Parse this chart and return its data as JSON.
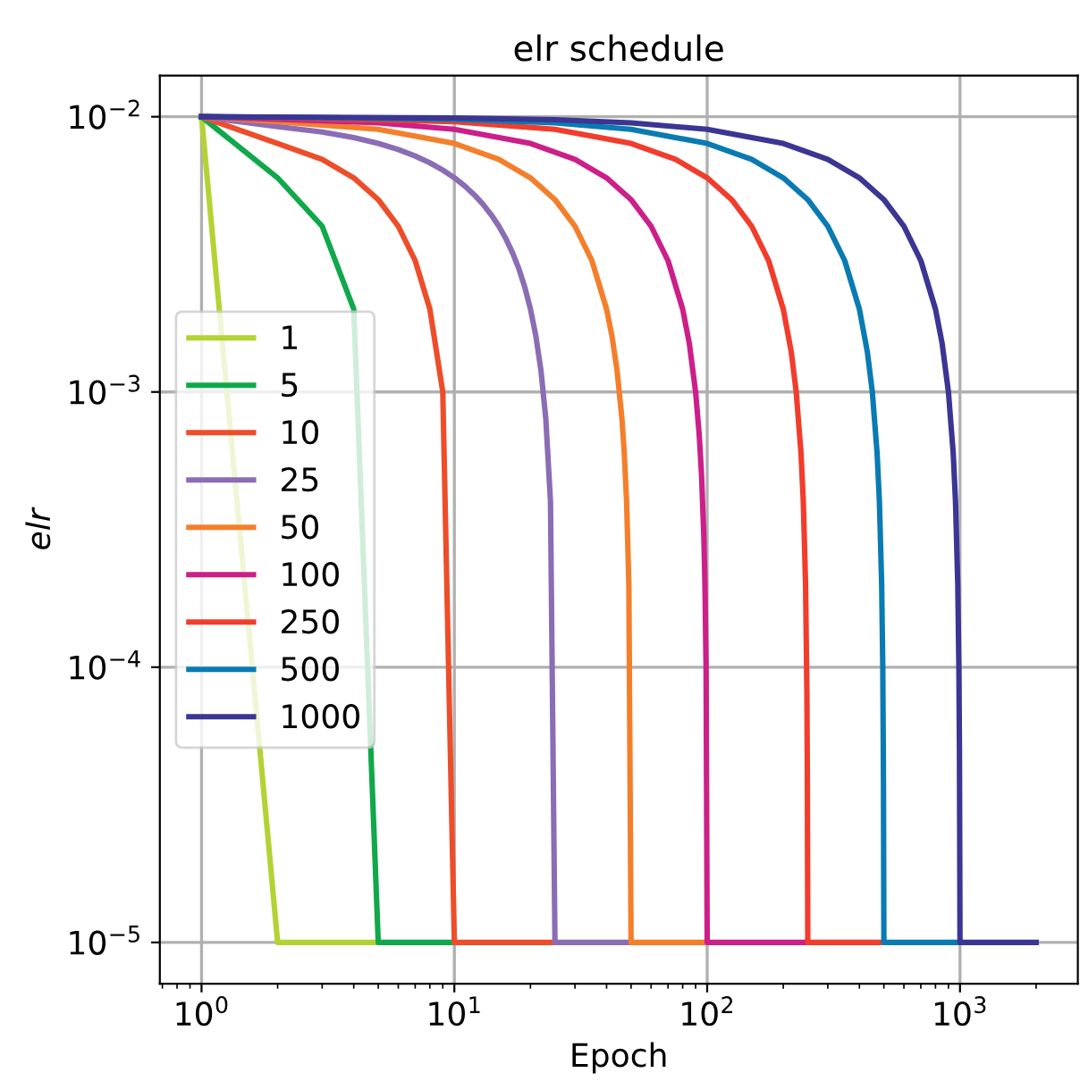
{
  "chart_data": {
    "type": "line",
    "title": "elr schedule",
    "xlabel": "Epoch",
    "ylabel": "elr",
    "log": "xy",
    "grid": true,
    "legend": "center left",
    "xlim": [
      0.684,
      2925
    ],
    "ylim": [
      7.08e-06,
      0.0141
    ],
    "xticks": [
      {
        "value": 1,
        "label": "10$^{0}$"
      },
      {
        "value": 10,
        "label": "10$^{1}$"
      },
      {
        "value": 100,
        "label": "10$^{2}$"
      },
      {
        "value": 1000,
        "label": "10$^{3}$"
      }
    ],
    "yticks": [
      {
        "value": 1e-05,
        "label": "10$^{−5}$"
      },
      {
        "value": 0.0001,
        "label": "10$^{−4}$"
      },
      {
        "value": 0.001,
        "label": "10$^{−3}$"
      },
      {
        "value": 0.01,
        "label": "10$^{−2}$"
      }
    ],
    "series": [
      {
        "name": "1",
        "color": "#b3d335",
        "x": [
          1,
          2,
          5
        ],
        "values": [
          0.01,
          1e-05,
          1e-05
        ]
      },
      {
        "name": "5",
        "color": "#10a84a",
        "x": [
          1,
          2,
          3,
          4,
          5,
          10
        ],
        "values": [
          0.01,
          0.006,
          0.004,
          0.002,
          1e-05,
          1e-05
        ]
      },
      {
        "name": "10",
        "color": "#ee4d2a",
        "x": [
          1,
          2,
          3,
          4,
          5,
          6,
          7,
          8,
          9,
          10,
          25
        ],
        "values": [
          0.01,
          0.008,
          0.007,
          0.006,
          0.005,
          0.004,
          0.003,
          0.002,
          0.001,
          1e-05,
          1e-05
        ]
      },
      {
        "name": "25",
        "color": "#8a6db5",
        "x": [
          1,
          2,
          3,
          4,
          5,
          6,
          7,
          8,
          9,
          10,
          11,
          12,
          13,
          14,
          15,
          16,
          17,
          18,
          19,
          20,
          21,
          22,
          23,
          24,
          25,
          50
        ],
        "values": [
          0.01,
          0.0092,
          0.0088,
          0.0084,
          0.008,
          0.0076,
          0.0072,
          0.0068,
          0.0064,
          0.006,
          0.0056,
          0.0052,
          0.0048,
          0.0044,
          0.004,
          0.0036,
          0.0032,
          0.0028,
          0.0024,
          0.002,
          0.0016,
          0.0012,
          0.0008,
          0.0004,
          1e-05,
          1e-05
        ]
      },
      {
        "name": "50",
        "color": "#f47f2b",
        "x": [
          1,
          2,
          5,
          10,
          15,
          20,
          25,
          30,
          35,
          40,
          42,
          44,
          46,
          47,
          48,
          49,
          50,
          100
        ],
        "values": [
          0.01,
          0.0096,
          0.009,
          0.008,
          0.007,
          0.006,
          0.005,
          0.004,
          0.003,
          0.002,
          0.0016,
          0.0012,
          0.0008,
          0.0006,
          0.0004,
          0.0002,
          1e-05,
          1e-05
        ]
      },
      {
        "name": "100",
        "color": "#cc1f8a",
        "x": [
          1,
          2,
          5,
          10,
          20,
          30,
          40,
          50,
          60,
          70,
          80,
          85,
          90,
          93,
          95,
          97,
          98,
          99,
          100,
          250
        ],
        "values": [
          0.01,
          0.0098,
          0.0095,
          0.009,
          0.008,
          0.007,
          0.006,
          0.005,
          0.004,
          0.003,
          0.002,
          0.0015,
          0.001,
          0.0007,
          0.0005,
          0.0003,
          0.0002,
          0.0001,
          1e-05,
          1e-05
        ]
      },
      {
        "name": "250",
        "color": "#f23c2c",
        "x": [
          1,
          2,
          10,
          25,
          50,
          75,
          100,
          125,
          150,
          175,
          200,
          215,
          225,
          235,
          240,
          245,
          248,
          249,
          250,
          500
        ],
        "values": [
          0.01,
          0.00992,
          0.0096,
          0.009,
          0.008,
          0.007,
          0.006,
          0.005,
          0.004,
          0.003,
          0.002,
          0.0014,
          0.001,
          0.0006,
          0.0004,
          0.0002,
          8e-05,
          4e-05,
          1e-05,
          1e-05
        ]
      },
      {
        "name": "500",
        "color": "#0a7bb2",
        "x": [
          1,
          2,
          10,
          25,
          50,
          100,
          150,
          200,
          250,
          300,
          350,
          400,
          430,
          450,
          470,
          480,
          490,
          495,
          498,
          500,
          1000
        ],
        "values": [
          0.01,
          0.00996,
          0.0098,
          0.0095,
          0.009,
          0.008,
          0.007,
          0.006,
          0.005,
          0.004,
          0.003,
          0.002,
          0.0014,
          0.001,
          0.0006,
          0.0004,
          0.0002,
          0.0001,
          4e-05,
          1e-05,
          1e-05
        ]
      },
      {
        "name": "1000",
        "color": "#3b3593",
        "x": [
          1,
          2,
          10,
          25,
          50,
          100,
          200,
          300,
          400,
          500,
          600,
          700,
          800,
          850,
          900,
          940,
          960,
          980,
          990,
          995,
          998,
          1000,
          2000
        ],
        "values": [
          0.01,
          0.00998,
          0.0099,
          0.00975,
          0.0095,
          0.009,
          0.008,
          0.007,
          0.006,
          0.005,
          0.004,
          0.003,
          0.002,
          0.0015,
          0.001,
          0.0006,
          0.0004,
          0.0002,
          0.0001,
          5e-05,
          2e-05,
          1e-05,
          1e-05
        ]
      }
    ]
  }
}
